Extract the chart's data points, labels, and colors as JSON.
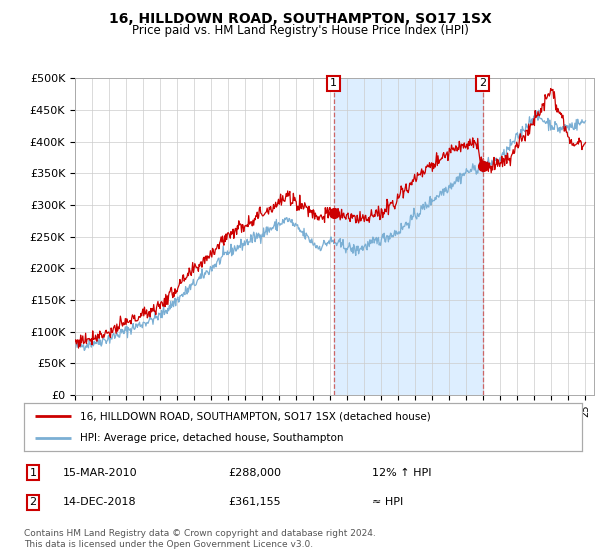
{
  "title": "16, HILLDOWN ROAD, SOUTHAMPTON, SO17 1SX",
  "subtitle": "Price paid vs. HM Land Registry's House Price Index (HPI)",
  "ylim": [
    0,
    500000
  ],
  "yticks": [
    0,
    50000,
    100000,
    150000,
    200000,
    250000,
    300000,
    350000,
    400000,
    450000,
    500000
  ],
  "ytick_labels": [
    "£0",
    "£50K",
    "£100K",
    "£150K",
    "£200K",
    "£250K",
    "£300K",
    "£350K",
    "£400K",
    "£450K",
    "£500K"
  ],
  "hpi_color": "#7bafd4",
  "price_color": "#cc0000",
  "shade_color": "#ddeeff",
  "marker1_x": 2010.2,
  "marker2_x": 2018.96,
  "marker1_value": 288000,
  "marker2_value": 361155,
  "legend_label_price": "16, HILLDOWN ROAD, SOUTHAMPTON, SO17 1SX (detached house)",
  "legend_label_hpi": "HPI: Average price, detached house, Southampton",
  "table_row1": [
    "1",
    "15-MAR-2010",
    "£288,000",
    "12% ↑ HPI"
  ],
  "table_row2": [
    "2",
    "14-DEC-2018",
    "£361,155",
    "≈ HPI"
  ],
  "footnote": "Contains HM Land Registry data © Crown copyright and database right 2024.\nThis data is licensed under the Open Government Licence v3.0.",
  "background_color": "#ffffff",
  "grid_color": "#cccccc"
}
